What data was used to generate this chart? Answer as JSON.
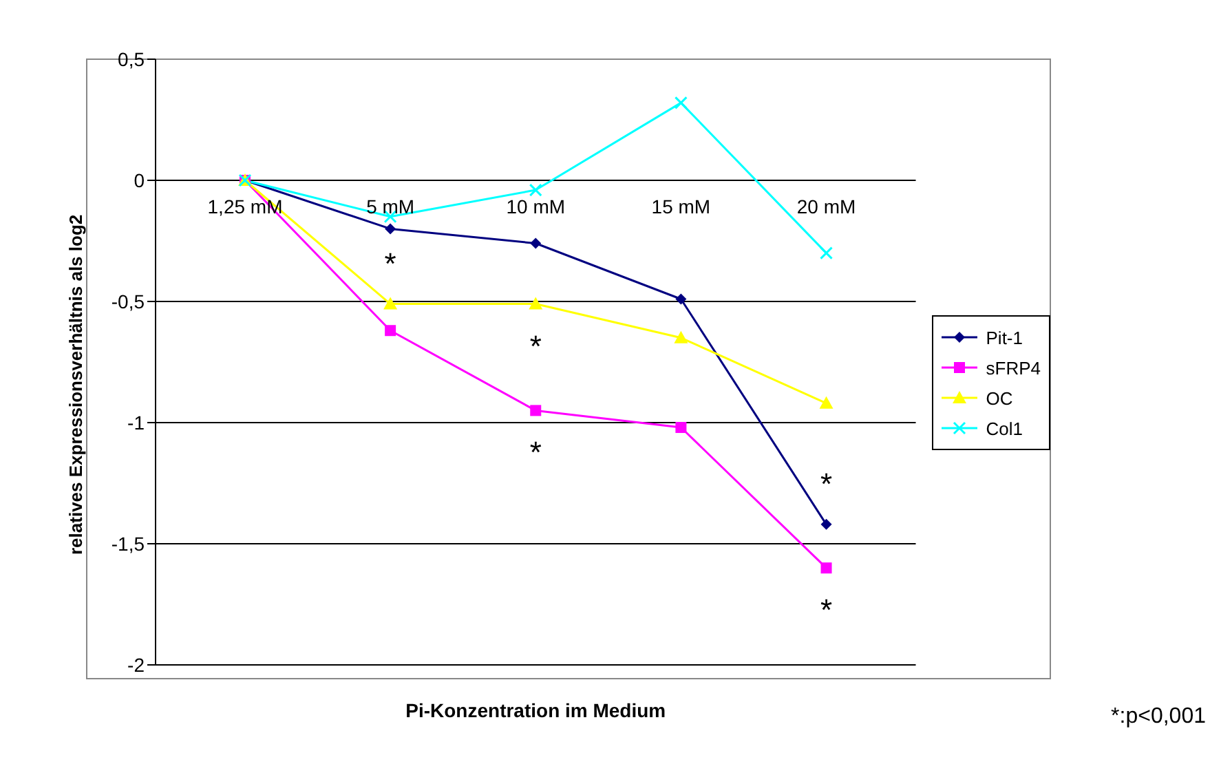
{
  "chart_data": {
    "type": "line",
    "xlabel": "Pi-Konzentration im Medium",
    "ylabel": "relatives Expressionsverhältnis als log2",
    "categories": [
      "1,25 mM",
      "5 mM",
      "10 mM",
      "15 mM",
      "20 mM"
    ],
    "series": [
      {
        "name": "Pit-1",
        "color": "#000080",
        "marker": "diamond",
        "values": [
          0,
          -0.2,
          -0.26,
          -0.49,
          -1.42
        ]
      },
      {
        "name": "sFRP4",
        "color": "#ff00ff",
        "marker": "square",
        "values": [
          0,
          -0.62,
          -0.95,
          -1.02,
          -1.6
        ]
      },
      {
        "name": "OC",
        "color": "#ffff00",
        "marker": "triangle",
        "values": [
          0,
          -0.51,
          -0.51,
          -0.65,
          -0.92
        ]
      },
      {
        "name": "Col1",
        "color": "#00ffff",
        "marker": "cross",
        "values": [
          0,
          -0.15,
          -0.04,
          0.32,
          -0.3
        ]
      }
    ],
    "ylim": [
      -2,
      0.5
    ],
    "yticks": [
      {
        "value": 0.5,
        "label": "0,5"
      },
      0,
      {
        "value": -0.5,
        "label": "-0,5"
      },
      -1,
      {
        "value": -1.5,
        "label": "-1,5"
      },
      -2
    ],
    "grid": "y",
    "legend": "right",
    "annotations": [
      {
        "text": "*",
        "x": "5 mM",
        "y": -0.51
      },
      {
        "text": "*",
        "x": "10 mM",
        "y": -0.51
      },
      {
        "text": "*",
        "x": "10 mM",
        "y": -0.95
      },
      {
        "text": "*",
        "x": "20 mM",
        "y": -1.42
      },
      {
        "text": "*",
        "x": "20 mM",
        "y": -1.6
      },
      "*:p<0,001"
    ]
  }
}
